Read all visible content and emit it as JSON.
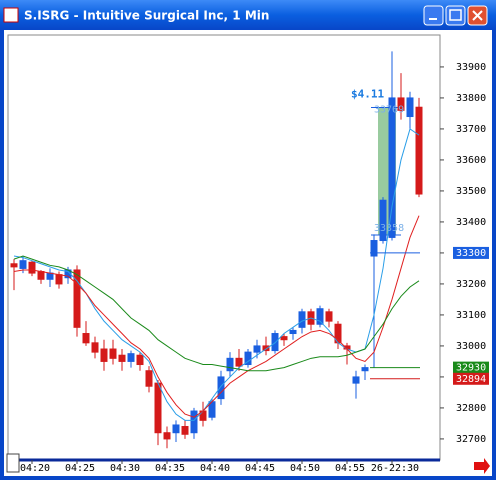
{
  "window": {
    "title": "S.ISRG - Intuitive Surgical Inc, 1 Min"
  },
  "chart_data": {
    "type": "candlestick",
    "categories": [
      null,
      null,
      "04:20",
      null,
      null,
      null,
      null,
      "04:25",
      null,
      null,
      null,
      null,
      "04:30",
      null,
      null,
      null,
      null,
      "04:35",
      null,
      null,
      null,
      null,
      "04:40",
      null,
      null,
      null,
      null,
      "04:45",
      null,
      null,
      null,
      null,
      "04:50",
      null,
      null,
      null,
      null,
      "04:55",
      null,
      null,
      null,
      null,
      "26-22:30",
      null,
      null,
      null
    ],
    "open": [
      33265,
      33250,
      33270,
      33240,
      33215,
      33230,
      33220,
      33245,
      33040,
      33010,
      32990,
      32990,
      32970,
      32950,
      32970,
      32920,
      32880,
      32720,
      32720,
      32740,
      32720,
      32790,
      32770,
      32830,
      32920,
      32960,
      32940,
      32980,
      33000,
      32985,
      33030,
      33040,
      33060,
      33110,
      33070,
      33110,
      33070,
      33000,
      32880,
      32920,
      33290,
      33340,
      33350,
      33800,
      33740,
      33770
    ],
    "high": [
      33280,
      33290,
      33275,
      33245,
      33250,
      33240,
      33255,
      33260,
      33080,
      33030,
      33020,
      33020,
      32990,
      32985,
      32980,
      32935,
      32890,
      32740,
      32760,
      32760,
      32800,
      32820,
      32830,
      32920,
      32980,
      32990,
      32990,
      33020,
      33030,
      33050,
      33040,
      33060,
      33120,
      33120,
      33130,
      33120,
      33080,
      33010,
      32920,
      32940,
      33360,
      33480,
      33950,
      33880,
      33820,
      33800
    ],
    "low": [
      33180,
      33235,
      33225,
      33200,
      33190,
      33185,
      33200,
      33030,
      33000,
      32960,
      32920,
      32940,
      32920,
      32930,
      32920,
      32850,
      32680,
      32670,
      32690,
      32700,
      32700,
      32740,
      32760,
      32810,
      32900,
      32920,
      32930,
      32960,
      32970,
      32975,
      33000,
      33020,
      33040,
      33050,
      33060,
      33060,
      32990,
      32940,
      32830,
      32890,
      32930,
      33330,
      33340,
      33730,
      33700,
      33480
    ],
    "close": [
      33255,
      33275,
      33235,
      33215,
      33235,
      33200,
      33245,
      33060,
      33010,
      32980,
      32950,
      32960,
      32950,
      32975,
      32940,
      32870,
      32720,
      32700,
      32745,
      32715,
      32790,
      32760,
      32820,
      32900,
      32960,
      32935,
      32980,
      33000,
      32985,
      33040,
      33020,
      33050,
      33110,
      33070,
      33120,
      33080,
      33010,
      32990,
      32900,
      32930,
      33340,
      33470,
      33800,
      33760,
      33800,
      33490
    ],
    "up_color": "#1a5fe0",
    "down_color": "#d41a1a",
    "series": [
      {
        "color": "#2a9ee8",
        "values": [
          33290,
          33285,
          33275,
          33265,
          33255,
          33245,
          33240,
          33210,
          33170,
          33120,
          33080,
          33050,
          33020,
          33000,
          32980,
          32950,
          32880,
          32820,
          32780,
          32760,
          32760,
          32790,
          32830,
          32870,
          32900,
          32930,
          32950,
          32970,
          32990,
          33010,
          33040,
          33060,
          33080,
          33090,
          33080,
          33050,
          33010,
          32990,
          32980,
          32990,
          33100,
          33250,
          33450,
          33600,
          33700,
          33680
        ]
      },
      {
        "color": "#e02020",
        "values": [
          33240,
          33245,
          33245,
          33240,
          33235,
          33230,
          33225,
          33200,
          33170,
          33130,
          33100,
          33070,
          33040,
          33010,
          32990,
          32960,
          32900,
          32850,
          32810,
          32780,
          32770,
          32790,
          32820,
          32850,
          32880,
          32900,
          32920,
          32935,
          32950,
          32970,
          32990,
          33010,
          33030,
          33045,
          33050,
          33040,
          33020,
          32990,
          32960,
          32950,
          32980,
          33060,
          33150,
          33250,
          33350,
          33420
        ]
      },
      {
        "color": "#1a8a1a",
        "values": [
          33280,
          33290,
          33280,
          33270,
          33260,
          33255,
          33245,
          33230,
          33210,
          33190,
          33170,
          33150,
          33120,
          33090,
          33070,
          33050,
          33020,
          33000,
          32980,
          32960,
          32950,
          32940,
          32940,
          32935,
          32930,
          32925,
          32920,
          32920,
          32920,
          32925,
          32930,
          32940,
          32950,
          32960,
          32965,
          32965,
          32965,
          32970,
          32980,
          32990,
          33030,
          33070,
          33120,
          33160,
          33190,
          33210
        ]
      }
    ],
    "ylim": [
      32632,
      34003
    ],
    "yticks": [
      32700,
      32800,
      32900,
      33000,
      33100,
      33200,
      33300,
      33400,
      33500,
      33600,
      33700,
      33800,
      33900
    ],
    "price_tags": [
      {
        "value": 33300,
        "color": "#1a5fe0"
      },
      {
        "value": 32930,
        "color": "#1a8a1a"
      },
      {
        "value": 32894,
        "color": "#d41a1a"
      }
    ],
    "measurement": {
      "start": 33358,
      "end": 33769,
      "label": "$4.11"
    }
  }
}
